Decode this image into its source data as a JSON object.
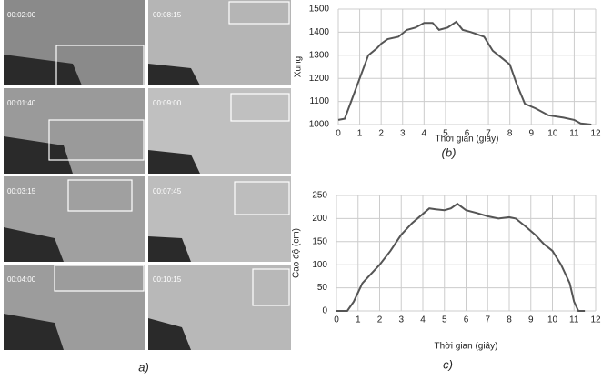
{
  "figure": {
    "timestamps": [
      "00:02:00",
      "00:08:15",
      "00:01:40",
      "00:09:00",
      "00:03:15",
      "00:07:45",
      "00:04:00",
      "00:10:15"
    ],
    "caption": "a)"
  },
  "chart_data": [
    {
      "type": "line",
      "caption": "(b)",
      "x_label": "Thời gian (giây)",
      "y_label": "Xung",
      "color": "#555555",
      "grid": true,
      "x": [
        0,
        0.3,
        0.6,
        1,
        1.4,
        1.8,
        2,
        2.3,
        2.8,
        3.2,
        3.6,
        4,
        4.4,
        4.7,
        5.1,
        5.5,
        5.8,
        6.2,
        6.8,
        7.2,
        7.6,
        8,
        8.3,
        8.7,
        9.2,
        9.8,
        10.5,
        11,
        11.3,
        11.8
      ],
      "values": [
        1020,
        1025,
        1100,
        1200,
        1300,
        1330,
        1350,
        1370,
        1380,
        1410,
        1420,
        1440,
        1440,
        1410,
        1420,
        1445,
        1410,
        1400,
        1380,
        1320,
        1290,
        1260,
        1180,
        1090,
        1070,
        1040,
        1030,
        1020,
        1005,
        1000
      ],
      "xlim": [
        0,
        12
      ],
      "xticks": [
        0,
        1,
        2,
        3,
        4,
        5,
        6,
        7,
        8,
        9,
        10,
        11,
        12
      ],
      "ylim": [
        1000,
        1500
      ],
      "yticks": [
        1000,
        1100,
        1200,
        1300,
        1400,
        1500
      ]
    },
    {
      "type": "line",
      "caption": "c)",
      "x_label": "Thời gian (giây)",
      "y_label": "Cao độ (cm)",
      "color": "#555555",
      "grid": true,
      "x": [
        0,
        0.5,
        0.8,
        1.2,
        1.6,
        2,
        2.5,
        3,
        3.5,
        4,
        4.3,
        4.6,
        5,
        5.3,
        5.6,
        6,
        6.5,
        7,
        7.5,
        8,
        8.3,
        8.7,
        9.2,
        9.6,
        10,
        10.4,
        10.8,
        11,
        11.2,
        11.5
      ],
      "values": [
        0,
        0,
        20,
        60,
        80,
        100,
        130,
        165,
        190,
        210,
        222,
        220,
        218,
        222,
        232,
        218,
        212,
        205,
        200,
        203,
        200,
        185,
        165,
        145,
        130,
        100,
        60,
        20,
        0,
        0
      ],
      "xlim": [
        0,
        12
      ],
      "xticks": [
        0,
        1,
        2,
        3,
        4,
        5,
        6,
        7,
        8,
        9,
        10,
        11,
        12
      ],
      "ylim": [
        0,
        250
      ],
      "yticks": [
        0,
        50,
        100,
        150,
        200,
        250
      ]
    }
  ]
}
